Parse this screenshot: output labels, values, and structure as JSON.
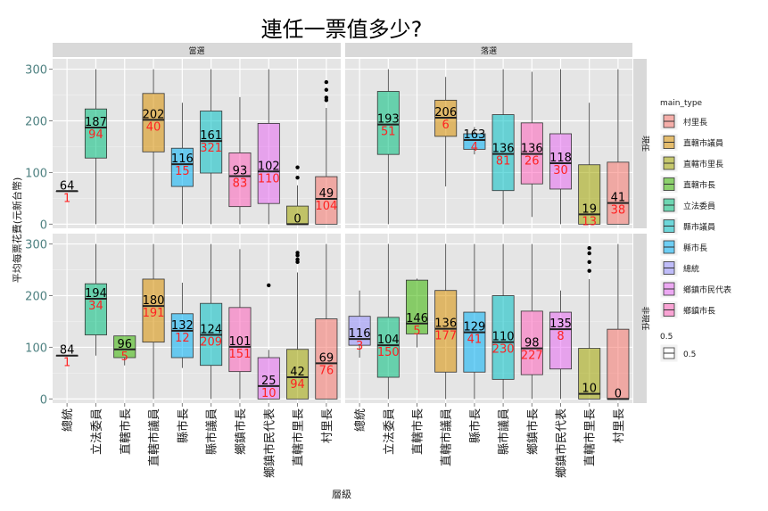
{
  "chart_data": {
    "type": "boxplot",
    "title": "連任一票值多少?",
    "xlabel": "層級",
    "ylabel": "平均每票花費(元新台幣)",
    "ylim": [
      -8,
      320
    ],
    "yticks": [
      0,
      100,
      200,
      300
    ],
    "col_facets": [
      "當選",
      "落選"
    ],
    "row_facets": [
      "現任",
      "非現任"
    ],
    "categories": [
      "總統",
      "立法委員",
      "直轄市長",
      "直轄市議員",
      "縣市長",
      "縣市議員",
      "鄉鎮市長",
      "鄉鎮市民代表",
      "直轄市里長",
      "村里長"
    ],
    "legend": {
      "title": "main_type",
      "entries": [
        {
          "label": "村里長",
          "color": "#F8766D"
        },
        {
          "label": "直轄市議員",
          "color": "#D89000"
        },
        {
          "label": "直轄市里長",
          "color": "#A3A500"
        },
        {
          "label": "直轄市長",
          "color": "#39B600"
        },
        {
          "label": "立法委員",
          "color": "#00BF7D"
        },
        {
          "label": "縣市議員",
          "color": "#00BFC4"
        },
        {
          "label": "縣市長",
          "color": "#00B0F6"
        },
        {
          "label": "總統",
          "color": "#9590FF"
        },
        {
          "label": "鄉鎮市民代表",
          "color": "#E76BF3"
        },
        {
          "label": "鄉鎮市長",
          "color": "#FF62BC"
        }
      ],
      "alpha_title": "0.5",
      "alpha_label": "0.5"
    },
    "panels": [
      {
        "col": "當選",
        "row": "現任",
        "boxes": [
          {
            "cat": "總統",
            "color": "#9590FF",
            "min": 64,
            "q1": 64,
            "median": 64,
            "q3": 64,
            "max": 64,
            "outliers": [],
            "median_label": "64",
            "n_label": "1"
          },
          {
            "cat": "立法委員",
            "color": "#00BF7D",
            "min": 0,
            "q1": 128,
            "median": 187,
            "q3": 223,
            "max": 300,
            "outliers": [],
            "median_label": "187",
            "n_label": "94"
          },
          {
            "cat": "直轄市議員",
            "color": "#D89000",
            "min": 0,
            "q1": 140,
            "median": 202,
            "q3": 253,
            "max": 300,
            "outliers": [],
            "median_label": "202",
            "n_label": "40"
          },
          {
            "cat": "縣市長",
            "color": "#00B0F6",
            "min": 0,
            "q1": 73,
            "median": 116,
            "q3": 147,
            "max": 235,
            "outliers": [],
            "median_label": "116",
            "n_label": "15"
          },
          {
            "cat": "縣市議員",
            "color": "#00BFC4",
            "min": 0,
            "q1": 99,
            "median": 161,
            "q3": 219,
            "max": 300,
            "outliers": [],
            "median_label": "161",
            "n_label": "321"
          },
          {
            "cat": "鄉鎮市長",
            "color": "#FF62BC",
            "min": 0,
            "q1": 34,
            "median": 93,
            "q3": 138,
            "max": 246,
            "outliers": [],
            "median_label": "93",
            "n_label": "83"
          },
          {
            "cat": "鄉鎮市民代表",
            "color": "#E76BF3",
            "min": 0,
            "q1": 40,
            "median": 102,
            "q3": 195,
            "max": 300,
            "outliers": [],
            "median_label": "102",
            "n_label": "110"
          },
          {
            "cat": "直轄市里長",
            "color": "#A3A500",
            "min": 0,
            "q1": 0,
            "median": 0,
            "q3": 35,
            "max": 75,
            "outliers": [
              90,
              110
            ],
            "median_label": "0",
            "n_label": ""
          },
          {
            "cat": "村里長",
            "color": "#F8766D",
            "min": 0,
            "q1": 0,
            "median": 49,
            "q3": 92,
            "max": 225,
            "outliers": [
              240,
              245,
              260,
              275
            ],
            "median_label": "49",
            "n_label": "104"
          }
        ]
      },
      {
        "col": "落選",
        "row": "現任",
        "boxes": [
          {
            "cat": "立法委員",
            "color": "#00BF7D",
            "min": 0,
            "q1": 135,
            "median": 193,
            "q3": 257,
            "max": 300,
            "outliers": [],
            "median_label": "193",
            "n_label": "51"
          },
          {
            "cat": "直轄市議員",
            "color": "#D89000",
            "min": 73,
            "q1": 170,
            "median": 206,
            "q3": 240,
            "max": 285,
            "outliers": [],
            "median_label": "206",
            "n_label": "6"
          },
          {
            "cat": "縣市長",
            "color": "#00B0F6",
            "min": 135,
            "q1": 145,
            "median": 163,
            "q3": 175,
            "max": 188,
            "outliers": [],
            "median_label": "163",
            "n_label": "4"
          },
          {
            "cat": "縣市議員",
            "color": "#00BFC4",
            "min": 0,
            "q1": 65,
            "median": 136,
            "q3": 212,
            "max": 300,
            "outliers": [],
            "median_label": "136",
            "n_label": "81"
          },
          {
            "cat": "鄉鎮市長",
            "color": "#FF62BC",
            "min": 14,
            "q1": 78,
            "median": 136,
            "q3": 196,
            "max": 295,
            "outliers": [],
            "median_label": "136",
            "n_label": "26"
          },
          {
            "cat": "鄉鎮市民代表",
            "color": "#E76BF3",
            "min": 0,
            "q1": 68,
            "median": 118,
            "q3": 175,
            "max": 300,
            "outliers": [],
            "median_label": "118",
            "n_label": "30"
          },
          {
            "cat": "直轄市里長",
            "color": "#A3A500",
            "min": 0,
            "q1": 0,
            "median": 19,
            "q3": 115,
            "max": 235,
            "outliers": [],
            "median_label": "19",
            "n_label": "13"
          },
          {
            "cat": "村里長",
            "color": "#F8766D",
            "min": 0,
            "q1": 0,
            "median": 41,
            "q3": 120,
            "max": 300,
            "outliers": [],
            "median_label": "41",
            "n_label": "38"
          }
        ]
      },
      {
        "col": "當選",
        "row": "非現任",
        "boxes": [
          {
            "cat": "總統",
            "color": "#9590FF",
            "min": 84,
            "q1": 84,
            "median": 84,
            "q3": 84,
            "max": 84,
            "outliers": [],
            "median_label": "84",
            "n_label": "1"
          },
          {
            "cat": "立法委員",
            "color": "#00BF7D",
            "min": 84,
            "q1": 124,
            "median": 194,
            "q3": 223,
            "max": 300,
            "outliers": [],
            "median_label": "194",
            "n_label": "34"
          },
          {
            "cat": "直轄市長",
            "color": "#39B600",
            "min": 65,
            "q1": 80,
            "median": 96,
            "q3": 122,
            "max": 122,
            "outliers": [],
            "median_label": "96",
            "n_label": "5"
          },
          {
            "cat": "直轄市議員",
            "color": "#D89000",
            "min": 0,
            "q1": 110,
            "median": 180,
            "q3": 232,
            "max": 300,
            "outliers": [],
            "median_label": "180",
            "n_label": "191"
          },
          {
            "cat": "縣市長",
            "color": "#00B0F6",
            "min": 60,
            "q1": 80,
            "median": 132,
            "q3": 165,
            "max": 225,
            "outliers": [],
            "median_label": "132",
            "n_label": "12"
          },
          {
            "cat": "縣市議員",
            "color": "#00BFC4",
            "min": 0,
            "q1": 65,
            "median": 124,
            "q3": 185,
            "max": 300,
            "outliers": [],
            "median_label": "124",
            "n_label": "209"
          },
          {
            "cat": "鄉鎮市長",
            "color": "#FF62BC",
            "min": 0,
            "q1": 53,
            "median": 101,
            "q3": 177,
            "max": 290,
            "outliers": [],
            "median_label": "101",
            "n_label": "151"
          },
          {
            "cat": "鄉鎮市民代表",
            "color": "#E76BF3",
            "min": 0,
            "q1": 0,
            "median": 25,
            "q3": 80,
            "max": 95,
            "outliers": [
              220
            ],
            "median_label": "25",
            "n_label": "10"
          },
          {
            "cat": "直轄市里長",
            "color": "#A3A500",
            "min": 0,
            "q1": 0,
            "median": 42,
            "q3": 96,
            "max": 245,
            "outliers": [
              265,
              270,
              278,
              283
            ],
            "median_label": "42",
            "n_label": "94"
          },
          {
            "cat": "村里長",
            "color": "#F8766D",
            "min": 0,
            "q1": 0,
            "median": 69,
            "q3": 155,
            "max": 300,
            "outliers": [],
            "median_label": "69",
            "n_label": "76"
          }
        ]
      },
      {
        "col": "落選",
        "row": "非現任",
        "boxes": [
          {
            "cat": "總統",
            "color": "#9590FF",
            "min": 80,
            "q1": 104,
            "median": 116,
            "q3": 160,
            "max": 210,
            "outliers": [],
            "median_label": "116",
            "n_label": "3"
          },
          {
            "cat": "立法委員",
            "color": "#00BF7D",
            "min": 0,
            "q1": 42,
            "median": 104,
            "q3": 158,
            "max": 300,
            "outliers": [],
            "median_label": "104",
            "n_label": "150"
          },
          {
            "cat": "直轄市長",
            "color": "#39B600",
            "min": 100,
            "q1": 126,
            "median": 146,
            "q3": 230,
            "max": 233,
            "outliers": [],
            "median_label": "146",
            "n_label": "5"
          },
          {
            "cat": "直轄市議員",
            "color": "#D89000",
            "min": 0,
            "q1": 52,
            "median": 136,
            "q3": 210,
            "max": 300,
            "outliers": [],
            "median_label": "136",
            "n_label": "177"
          },
          {
            "cat": "縣市長",
            "color": "#00B0F6",
            "min": 0,
            "q1": 52,
            "median": 129,
            "q3": 168,
            "max": 300,
            "outliers": [],
            "median_label": "129",
            "n_label": "41"
          },
          {
            "cat": "縣市議員",
            "color": "#00BFC4",
            "min": 0,
            "q1": 38,
            "median": 110,
            "q3": 200,
            "max": 300,
            "outliers": [],
            "median_label": "110",
            "n_label": "230"
          },
          {
            "cat": "鄉鎮市長",
            "color": "#FF62BC",
            "min": 0,
            "q1": 47,
            "median": 98,
            "q3": 170,
            "max": 300,
            "outliers": [],
            "median_label": "98",
            "n_label": "227"
          },
          {
            "cat": "鄉鎮市民代表",
            "color": "#E76BF3",
            "min": 0,
            "q1": 58,
            "median": 135,
            "q3": 168,
            "max": 210,
            "outliers": [],
            "median_label": "135",
            "n_label": "8"
          },
          {
            "cat": "直轄市里長",
            "color": "#A3A500",
            "min": 0,
            "q1": 0,
            "median": 10,
            "q3": 98,
            "max": 232,
            "outliers": [
              248,
              265,
              282,
              292
            ],
            "median_label": "10",
            "n_label": ""
          },
          {
            "cat": "村里長",
            "color": "#F8766D",
            "min": 0,
            "q1": 0,
            "median": 0,
            "q3": 135,
            "max": 300,
            "outliers": [],
            "median_label": "0",
            "n_label": ""
          }
        ]
      }
    ]
  }
}
